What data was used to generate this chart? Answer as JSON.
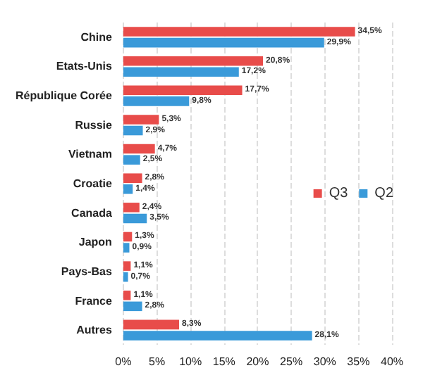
{
  "chart_data": {
    "type": "bar",
    "orientation": "horizontal",
    "categories": [
      "Chine",
      "Etats-Unis",
      "République Corée",
      "Russie",
      "Vietnam",
      "Croatie",
      "Canada",
      "Japon",
      "Pays-Bas",
      "France",
      "Autres"
    ],
    "series": [
      {
        "name": "Q3",
        "color": "#e84c4a",
        "values": [
          34.5,
          20.8,
          17.7,
          5.3,
          4.7,
          2.8,
          2.4,
          1.3,
          1.1,
          1.1,
          8.3
        ],
        "value_labels": [
          "34,5%",
          "20,8%",
          "17,7%",
          "5,3%",
          "4,7%",
          "2,8%",
          "2,4%",
          "1,3%",
          "1,1%",
          "1,1%",
          "8,3%"
        ]
      },
      {
        "name": "Q2",
        "color": "#3a9ad9",
        "values": [
          29.9,
          17.2,
          9.8,
          2.9,
          2.5,
          1.4,
          3.5,
          0.9,
          0.7,
          2.8,
          28.1
        ],
        "value_labels": [
          "29,9%",
          "17,2%",
          "9,8%",
          "2,9%",
          "2,5%",
          "1,4%",
          "3,5%",
          "0,9%",
          "0,7%",
          "2,8%",
          "28,1%"
        ]
      }
    ],
    "xlim": [
      0,
      40
    ],
    "xticks": [
      {
        "value": 0,
        "label": "0%"
      },
      {
        "value": 5,
        "label": "5%"
      },
      {
        "value": 10,
        "label": "10%"
      },
      {
        "value": 15,
        "label": "15%"
      },
      {
        "value": 20,
        "label": "20%"
      },
      {
        "value": 25,
        "label": "25%"
      },
      {
        "value": 30,
        "label": "30%"
      },
      {
        "value": 35,
        "label": "35%"
      },
      {
        "value": 40,
        "label": "40%"
      }
    ],
    "grid": "x",
    "legend": "right"
  }
}
